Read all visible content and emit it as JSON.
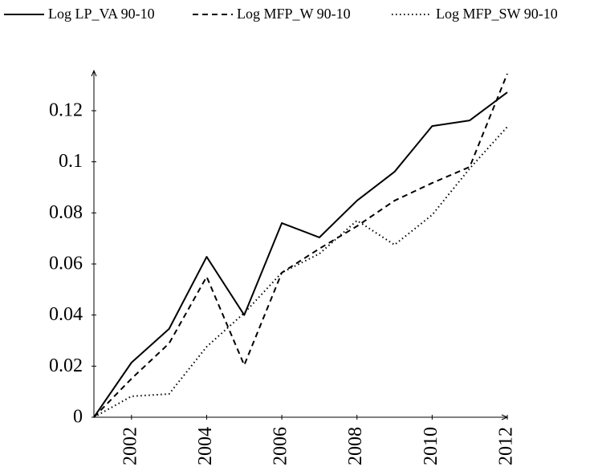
{
  "chart_data": {
    "type": "line",
    "x": [
      2001,
      2002,
      2003,
      2004,
      2005,
      2006,
      2007,
      2008,
      2009,
      2010,
      2011,
      2012
    ],
    "series": [
      {
        "name": "Log LP_VA 90-10",
        "color": "#000000",
        "dash": "solid",
        "values": [
          0,
          0.0214,
          0.0346,
          0.0628,
          0.04,
          0.076,
          0.0704,
          0.0848,
          0.0961,
          0.114,
          0.1162,
          0.1272
        ]
      },
      {
        "name": "Log MFP_W 90-10",
        "color": "#000000",
        "dash": "dashed",
        "values": [
          0,
          0.0151,
          0.0289,
          0.055,
          0.0204,
          0.0566,
          0.066,
          0.0748,
          0.0848,
          0.0917,
          0.098,
          0.1345
        ]
      },
      {
        "name": "Log MFP_SW 90-10",
        "color": "#000000",
        "dash": "dotted",
        "values": [
          0,
          0.0082,
          0.0091,
          0.0276,
          0.0408,
          0.0566,
          0.064,
          0.077,
          0.0675,
          0.0792,
          0.0974,
          0.1137
        ]
      }
    ],
    "xlim": [
      2001,
      2012
    ],
    "xticks": [
      2002,
      2004,
      2006,
      2008,
      2010,
      2012
    ],
    "ylim": [
      0,
      0.1357
    ],
    "yticks": [
      0,
      0.02,
      0.04,
      0.06,
      0.08,
      0.1,
      0.12
    ],
    "grid": false
  }
}
